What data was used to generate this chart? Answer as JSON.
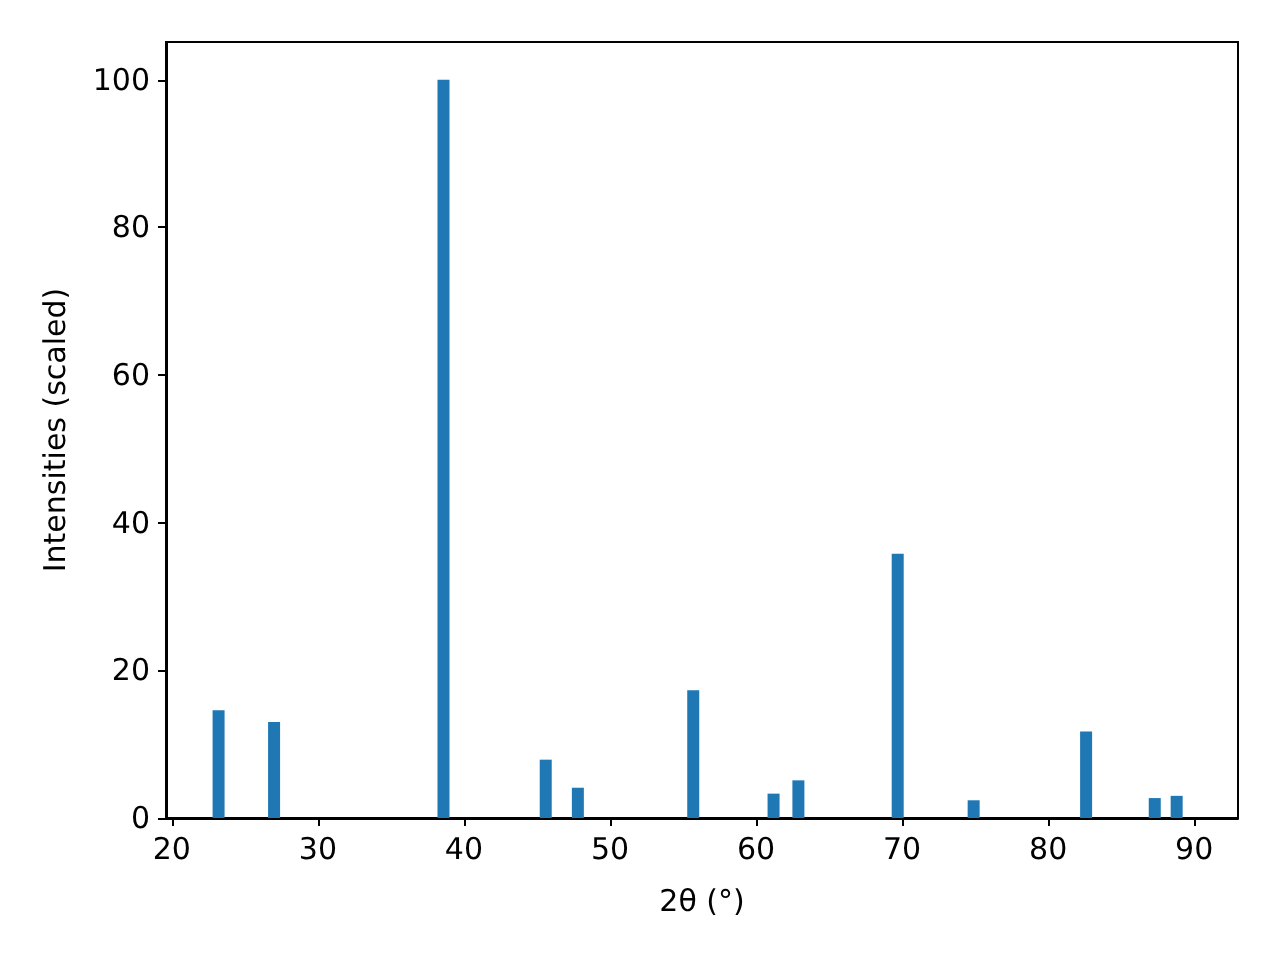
{
  "chart_data": {
    "type": "bar",
    "xlabel": "2θ (°)",
    "ylabel": "Intensities (scaled)",
    "x": [
      23.2,
      27.0,
      38.6,
      45.6,
      47.8,
      55.7,
      61.2,
      62.9,
      69.7,
      74.9,
      82.6,
      87.3,
      88.8
    ],
    "values": [
      14.6,
      13.0,
      100,
      7.9,
      4.1,
      17.3,
      3.3,
      5.1,
      35.8,
      2.4,
      11.7,
      2.7,
      3.0
    ],
    "color": "#1f77b4",
    "xlim": [
      19.6,
      93.0
    ],
    "xticks": [
      20,
      30,
      40,
      50,
      60,
      70,
      80,
      90
    ],
    "ylim": [
      0,
      105.1
    ],
    "yticks": [
      0,
      20,
      40,
      60,
      80,
      100
    ],
    "grid": false
  }
}
